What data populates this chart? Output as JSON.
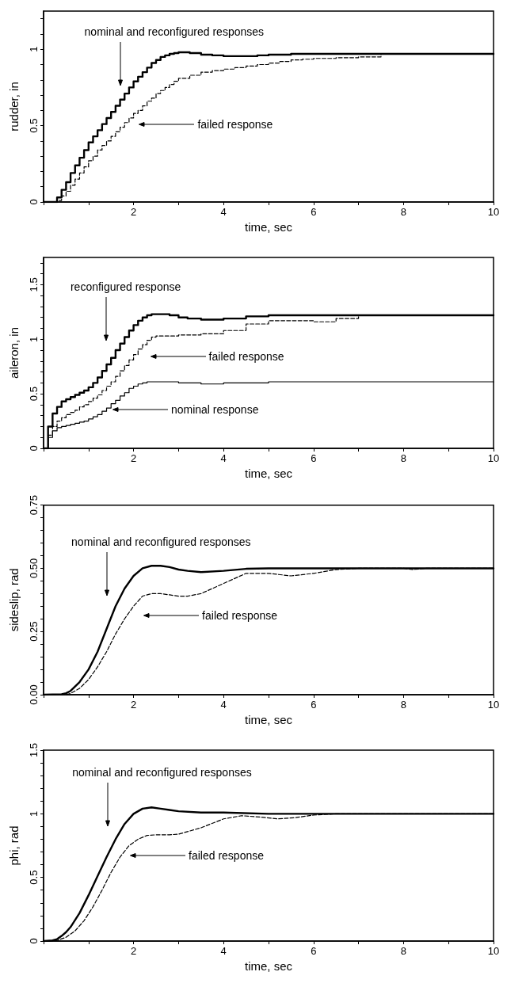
{
  "chart_data": [
    {
      "type": "step",
      "ylabel": "rudder, in",
      "xlabel": "time, sec",
      "marker": "none",
      "xlim": [
        0,
        10
      ],
      "ylim": [
        0,
        1.25
      ],
      "xticks": [
        {
          "value": 0,
          "label": null
        },
        {
          "value": 1,
          "label": null
        },
        2,
        {
          "value": 3,
          "label": null
        },
        4,
        {
          "value": 5,
          "label": null
        },
        6,
        {
          "value": 7,
          "label": null
        },
        8,
        {
          "value": 9,
          "label": null
        },
        10
      ],
      "yticks": [
        0,
        {
          "value": 0.1,
          "label": null
        },
        {
          "value": 0.2,
          "label": null
        },
        {
          "value": 0.3,
          "label": null
        },
        {
          "value": 0.4,
          "label": null
        },
        0.5,
        {
          "value": 0.6,
          "label": null
        },
        {
          "value": 0.7,
          "label": null
        },
        {
          "value": 0.8,
          "label": null
        },
        {
          "value": 0.9,
          "label": null
        },
        1,
        {
          "value": 1.1,
          "label": null
        },
        {
          "value": 1.2,
          "label": null
        }
      ],
      "series": [
        {
          "color": "#000000",
          "line_style": "solid",
          "x": [
            0,
            0.1,
            0.2,
            0.3,
            0.4,
            0.5,
            0.6,
            0.7,
            0.8,
            0.9,
            1.0,
            1.1,
            1.2,
            1.3,
            1.4,
            1.5,
            1.6,
            1.7,
            1.8,
            1.9,
            2.0,
            2.1,
            2.2,
            2.3,
            2.4,
            2.5,
            2.6,
            2.7,
            2.8,
            2.9,
            3.0,
            3.25,
            3.5,
            3.75,
            4.0,
            4.25,
            4.5,
            4.75,
            5.0,
            5.5,
            6.0,
            7.0,
            8.0,
            9.0,
            10.0
          ],
          "values": [
            0,
            0,
            0,
            0.03,
            0.08,
            0.13,
            0.19,
            0.24,
            0.29,
            0.34,
            0.39,
            0.43,
            0.47,
            0.51,
            0.55,
            0.59,
            0.63,
            0.67,
            0.71,
            0.75,
            0.79,
            0.82,
            0.85,
            0.88,
            0.91,
            0.93,
            0.95,
            0.96,
            0.97,
            0.975,
            0.98,
            0.975,
            0.965,
            0.96,
            0.955,
            0.955,
            0.955,
            0.96,
            0.965,
            0.97,
            0.97,
            0.97,
            0.97,
            0.97,
            0.97
          ]
        },
        {
          "color": "#000000",
          "line_style": "dashed",
          "x": [
            0,
            0.1,
            0.2,
            0.3,
            0.4,
            0.5,
            0.6,
            0.7,
            0.8,
            0.9,
            1.0,
            1.1,
            1.2,
            1.3,
            1.4,
            1.5,
            1.6,
            1.7,
            1.8,
            1.9,
            2.0,
            2.1,
            2.2,
            2.3,
            2.4,
            2.5,
            2.6,
            2.7,
            2.8,
            2.9,
            3.0,
            3.25,
            3.5,
            3.75,
            4.0,
            4.25,
            4.5,
            4.75,
            5.0,
            5.25,
            5.5,
            5.75,
            6.0,
            6.5,
            7.0,
            7.5,
            8.0,
            9.0,
            10.0
          ],
          "values": [
            0,
            0,
            0,
            0.01,
            0.04,
            0.07,
            0.11,
            0.15,
            0.19,
            0.23,
            0.27,
            0.3,
            0.34,
            0.37,
            0.4,
            0.43,
            0.46,
            0.49,
            0.52,
            0.55,
            0.58,
            0.6,
            0.63,
            0.66,
            0.68,
            0.71,
            0.73,
            0.75,
            0.77,
            0.79,
            0.81,
            0.83,
            0.85,
            0.86,
            0.87,
            0.88,
            0.89,
            0.9,
            0.91,
            0.92,
            0.93,
            0.935,
            0.94,
            0.945,
            0.95,
            0.97,
            0.97,
            0.97,
            0.97
          ]
        }
      ],
      "annotations": [
        "nominal and reconfigured responses",
        "failed response"
      ]
    },
    {
      "type": "step",
      "ylabel": "aileron, in",
      "xlabel": "time, sec",
      "marker": "none",
      "xlim": [
        0,
        10
      ],
      "ylim": [
        0,
        1.75
      ],
      "xticks": [
        {
          "value": 0,
          "label": null
        },
        {
          "value": 1,
          "label": null
        },
        2,
        {
          "value": 3,
          "label": null
        },
        4,
        {
          "value": 5,
          "label": null
        },
        6,
        {
          "value": 7,
          "label": null
        },
        8,
        {
          "value": 9,
          "label": null
        },
        10
      ],
      "yticks": [
        0,
        {
          "value": 0.1,
          "label": null
        },
        {
          "value": 0.2,
          "label": null
        },
        {
          "value": 0.3,
          "label": null
        },
        {
          "value": 0.4,
          "label": null
        },
        0.5,
        {
          "value": 0.6,
          "label": null
        },
        {
          "value": 0.7,
          "label": null
        },
        {
          "value": 0.8,
          "label": null
        },
        {
          "value": 0.9,
          "label": null
        },
        1,
        {
          "value": 1.1,
          "label": null
        },
        {
          "value": 1.2,
          "label": null
        },
        {
          "value": 1.3,
          "label": null
        },
        {
          "value": 1.4,
          "label": null
        },
        1.5,
        {
          "value": 1.6,
          "label": null
        },
        {
          "value": 1.7,
          "label": null
        }
      ],
      "series": [
        {
          "color": "#000000",
          "line_style": "solid",
          "x": [
            0,
            0.1,
            0.2,
            0.3,
            0.4,
            0.5,
            0.6,
            0.7,
            0.8,
            0.9,
            1.0,
            1.1,
            1.2,
            1.3,
            1.4,
            1.5,
            1.6,
            1.7,
            1.8,
            1.9,
            2.0,
            2.1,
            2.2,
            2.3,
            2.4,
            2.5,
            2.8,
            3.0,
            3.2,
            3.5,
            3.75,
            4.0,
            4.5,
            5.0,
            6.0,
            7.0,
            8.0,
            9.0,
            10.0
          ],
          "values": [
            0,
            0.2,
            0.32,
            0.38,
            0.43,
            0.45,
            0.47,
            0.49,
            0.51,
            0.53,
            0.56,
            0.6,
            0.65,
            0.71,
            0.77,
            0.83,
            0.9,
            0.96,
            1.02,
            1.08,
            1.13,
            1.17,
            1.2,
            1.22,
            1.23,
            1.23,
            1.22,
            1.2,
            1.19,
            1.18,
            1.18,
            1.19,
            1.21,
            1.22,
            1.22,
            1.22,
            1.22,
            1.22,
            1.22
          ]
        },
        {
          "color": "#000000",
          "line_style": "dashed",
          "x": [
            0,
            0.1,
            0.2,
            0.3,
            0.4,
            0.5,
            0.6,
            0.7,
            0.8,
            0.9,
            1.0,
            1.1,
            1.2,
            1.3,
            1.4,
            1.5,
            1.6,
            1.7,
            1.8,
            1.9,
            2.0,
            2.1,
            2.2,
            2.3,
            2.4,
            2.5,
            3.0,
            3.5,
            4.0,
            4.5,
            5.0,
            5.5,
            6.0,
            6.5,
            7.0,
            8.0,
            9.0,
            10.0
          ],
          "values": [
            0,
            0.12,
            0.2,
            0.25,
            0.28,
            0.31,
            0.33,
            0.35,
            0.38,
            0.4,
            0.43,
            0.46,
            0.49,
            0.53,
            0.57,
            0.61,
            0.66,
            0.71,
            0.76,
            0.81,
            0.86,
            0.91,
            0.95,
            0.99,
            1.02,
            1.03,
            1.04,
            1.05,
            1.08,
            1.14,
            1.17,
            1.17,
            1.16,
            1.19,
            1.22,
            1.22,
            1.22,
            1.22
          ]
        },
        {
          "color": "#000000",
          "line_style": "solid",
          "x": [
            0,
            0.1,
            0.2,
            0.3,
            0.4,
            0.5,
            0.6,
            0.7,
            0.8,
            0.9,
            1.0,
            1.1,
            1.2,
            1.3,
            1.4,
            1.5,
            1.6,
            1.7,
            1.8,
            1.9,
            2.0,
            2.1,
            2.2,
            2.3,
            2.4,
            2.5,
            3.0,
            3.5,
            4.0,
            4.5,
            5.0,
            6.0,
            7.0,
            8.0,
            9.0,
            10.0
          ],
          "values": [
            0,
            0.1,
            0.16,
            0.19,
            0.2,
            0.21,
            0.22,
            0.23,
            0.24,
            0.25,
            0.27,
            0.29,
            0.31,
            0.34,
            0.37,
            0.41,
            0.44,
            0.48,
            0.51,
            0.55,
            0.57,
            0.59,
            0.6,
            0.61,
            0.61,
            0.61,
            0.6,
            0.59,
            0.6,
            0.6,
            0.61,
            0.61,
            0.61,
            0.61,
            0.61,
            0.61
          ]
        }
      ],
      "annotations": [
        "reconfigured response",
        "failed response",
        "nominal response"
      ]
    },
    {
      "type": "line",
      "ylabel": "sideslip, rad",
      "xlabel": "time, sec",
      "marker": "none",
      "xlim": [
        0,
        10
      ],
      "ylim": [
        0,
        0.75
      ],
      "xticks": [
        {
          "value": 0,
          "label": null
        },
        {
          "value": 1,
          "label": null
        },
        2,
        {
          "value": 3,
          "label": null
        },
        4,
        {
          "value": 5,
          "label": null
        },
        6,
        {
          "value": 7,
          "label": null
        },
        8,
        {
          "value": 9,
          "label": null
        },
        10
      ],
      "yticks": [
        {
          "value": 0,
          "label": "0.00"
        },
        {
          "value": 0.05,
          "label": null
        },
        {
          "value": 0.1,
          "label": null
        },
        {
          "value": 0.15,
          "label": null
        },
        {
          "value": 0.2,
          "label": null
        },
        {
          "value": 0.25,
          "label": "0.25"
        },
        {
          "value": 0.3,
          "label": null
        },
        {
          "value": 0.35,
          "label": null
        },
        {
          "value": 0.4,
          "label": null
        },
        {
          "value": 0.45,
          "label": null
        },
        {
          "value": 0.5,
          "label": "0.50"
        },
        {
          "value": 0.55,
          "label": null
        },
        {
          "value": 0.6,
          "label": null
        },
        {
          "value": 0.65,
          "label": null
        },
        {
          "value": 0.7,
          "label": null
        },
        {
          "value": 0.75,
          "label": "0.75"
        }
      ],
      "series": [
        {
          "color": "#000000",
          "line_style": "solid",
          "x": [
            0,
            0.4,
            0.5,
            0.6,
            0.8,
            1.0,
            1.2,
            1.4,
            1.6,
            1.8,
            2.0,
            2.2,
            2.4,
            2.6,
            2.8,
            3.0,
            3.2,
            3.5,
            4.0,
            4.5,
            5.0,
            6.0,
            8.0,
            10.0
          ],
          "values": [
            0,
            0.002,
            0.006,
            0.015,
            0.05,
            0.1,
            0.17,
            0.26,
            0.35,
            0.42,
            0.47,
            0.5,
            0.51,
            0.51,
            0.505,
            0.495,
            0.49,
            0.485,
            0.49,
            0.498,
            0.5,
            0.5,
            0.5,
            0.5
          ]
        },
        {
          "color": "#000000",
          "line_style": "dashed",
          "x": [
            0,
            0.5,
            0.6,
            0.8,
            1.0,
            1.2,
            1.4,
            1.6,
            1.8,
            2.0,
            2.2,
            2.4,
            2.6,
            2.8,
            3.0,
            3.2,
            3.5,
            4.0,
            4.5,
            5.0,
            5.5,
            6.0,
            6.5,
            7.0,
            8.0,
            8.2,
            8.5,
            10.0
          ],
          "values": [
            0,
            0,
            0.005,
            0.025,
            0.06,
            0.11,
            0.17,
            0.24,
            0.3,
            0.35,
            0.39,
            0.4,
            0.4,
            0.395,
            0.39,
            0.39,
            0.4,
            0.44,
            0.48,
            0.48,
            0.47,
            0.48,
            0.495,
            0.5,
            0.5,
            0.495,
            0.5,
            0.5
          ]
        }
      ],
      "annotations": [
        "nominal and reconfigured responses",
        "failed response"
      ]
    },
    {
      "type": "line",
      "ylabel": "phi, rad",
      "xlabel": "time, sec",
      "marker": "none",
      "xlim": [
        0,
        10
      ],
      "ylim": [
        0,
        1.5
      ],
      "xticks": [
        {
          "value": 0,
          "label": null
        },
        {
          "value": 1,
          "label": null
        },
        2,
        {
          "value": 3,
          "label": null
        },
        4,
        {
          "value": 5,
          "label": null
        },
        6,
        {
          "value": 7,
          "label": null
        },
        8,
        {
          "value": 9,
          "label": null
        },
        10
      ],
      "yticks": [
        0,
        {
          "value": 0.1,
          "label": null
        },
        {
          "value": 0.2,
          "label": null
        },
        {
          "value": 0.3,
          "label": null
        },
        {
          "value": 0.4,
          "label": null
        },
        0.5,
        {
          "value": 0.6,
          "label": null
        },
        {
          "value": 0.7,
          "label": null
        },
        {
          "value": 0.8,
          "label": null
        },
        {
          "value": 0.9,
          "label": null
        },
        1,
        {
          "value": 1.1,
          "label": null
        },
        {
          "value": 1.2,
          "label": null
        },
        {
          "value": 1.3,
          "label": null
        },
        {
          "value": 1.4,
          "label": null
        },
        1.5
      ],
      "series": [
        {
          "color": "#000000",
          "line_style": "solid",
          "x": [
            0,
            0.2,
            0.3,
            0.4,
            0.5,
            0.6,
            0.8,
            1.0,
            1.2,
            1.4,
            1.6,
            1.8,
            2.0,
            2.2,
            2.4,
            2.6,
            2.8,
            3.0,
            3.5,
            4.0,
            5.0,
            6.0,
            8.0,
            10.0
          ],
          "values": [
            0,
            0.005,
            0.015,
            0.04,
            0.07,
            0.11,
            0.22,
            0.36,
            0.51,
            0.66,
            0.8,
            0.92,
            1.0,
            1.04,
            1.05,
            1.04,
            1.03,
            1.02,
            1.01,
            1.01,
            1.0,
            1.0,
            1.0,
            1.0
          ]
        },
        {
          "color": "#000000",
          "line_style": "dashed",
          "x": [
            0,
            0.3,
            0.5,
            0.7,
            0.9,
            1.1,
            1.3,
            1.5,
            1.7,
            1.9,
            2.1,
            2.3,
            2.5,
            2.8,
            3.0,
            3.5,
            4.0,
            4.4,
            4.8,
            5.2,
            5.6,
            6.0,
            6.5,
            8.0,
            10.0
          ],
          "values": [
            0,
            0.005,
            0.03,
            0.08,
            0.16,
            0.27,
            0.4,
            0.54,
            0.66,
            0.75,
            0.8,
            0.83,
            0.835,
            0.835,
            0.84,
            0.89,
            0.96,
            0.985,
            0.975,
            0.96,
            0.97,
            0.99,
            1.0,
            1.0,
            1.0
          ]
        }
      ],
      "annotations": [
        "nominal and reconfigured responses",
        "failed response"
      ]
    }
  ]
}
